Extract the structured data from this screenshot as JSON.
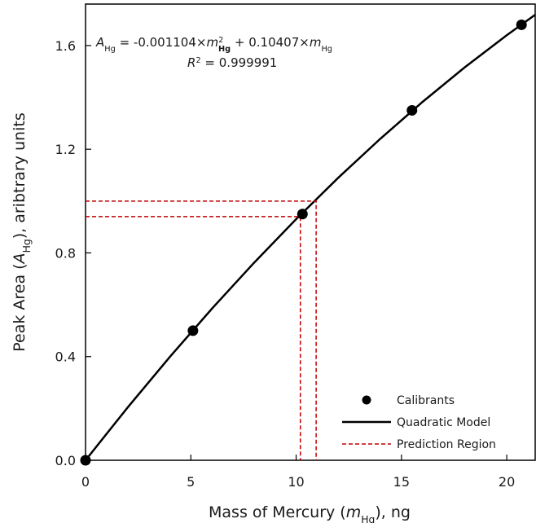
{
  "chart_data": {
    "type": "scatter",
    "x_label": [
      {
        "text": "Mass of Mercury ("
      },
      {
        "text": "m",
        "italic": true
      },
      {
        "text": "Hg",
        "sub": true
      },
      {
        "text": "), ng"
      }
    ],
    "y_label": [
      {
        "text": "Peak Area ("
      },
      {
        "text": "A",
        "italic": true
      },
      {
        "text": "Hg",
        "sub": true
      },
      {
        "text": "), aribtrary units"
      }
    ],
    "annotations": [
      [
        {
          "text": "A",
          "italic": true
        },
        {
          "text": "Hg",
          "sub": true
        },
        {
          "text": " = -0.001104×"
        },
        {
          "text": "m",
          "italic": true
        },
        {
          "text": "2",
          "sup": true
        },
        {
          "text": "Hg",
          "sub": true,
          "bold": true
        },
        {
          "text": " + 0.10407×"
        },
        {
          "text": "m",
          "italic": true
        },
        {
          "text": "Hg",
          "sub": true
        }
      ],
      [
        {
          "text": "R",
          "italic": true
        },
        {
          "text": "2",
          "sup": true
        },
        {
          "text": " = 0.999991"
        }
      ]
    ],
    "xlim": [
      0,
      21.35
    ],
    "ylim": [
      0,
      1.76
    ],
    "xticks": [
      0,
      5,
      10,
      15,
      20
    ],
    "yticks": [
      {
        "value": 0,
        "label": "0.0"
      },
      0.4,
      0.8,
      1.2,
      1.6
    ],
    "grid": false,
    "legend": "lower right",
    "series": [
      {
        "name": "Calibrants",
        "type": "scatter",
        "color": "#000000",
        "x": [
          0,
          5.1,
          10.3,
          15.5,
          20.7
        ],
        "values": [
          0,
          0.5,
          0.95,
          1.35,
          1.68
        ]
      },
      {
        "name": "Quadratic Model",
        "type": "line",
        "color": "#000000",
        "x": [
          0,
          2,
          4,
          6,
          8,
          10,
          12,
          14,
          16,
          18,
          20,
          21.35
        ],
        "values": [
          0,
          0.2037,
          0.3986,
          0.5847,
          0.7619,
          0.9303,
          1.0899,
          1.2406,
          1.3825,
          1.5156,
          1.6398,
          1.7187
        ]
      },
      {
        "name": "Prediction Region",
        "type": "line",
        "dashed": true,
        "color": "#c00000",
        "x": [
          0,
          10.2,
          10.2,
          null,
          0,
          10.95,
          10.95
        ],
        "values": [
          0.94,
          0.94,
          0,
          null,
          1.0,
          1.0,
          0
        ]
      }
    ]
  }
}
